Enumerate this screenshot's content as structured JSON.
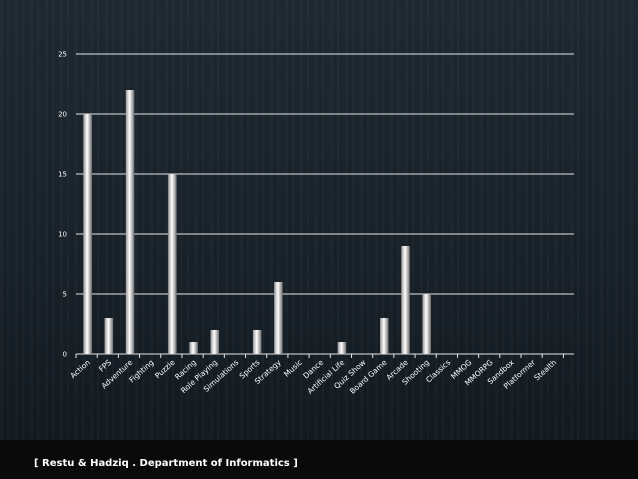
{
  "chart_data": {
    "type": "bar",
    "title": "",
    "xlabel": "",
    "ylabel": "",
    "ylim": [
      0,
      25
    ],
    "yticks": [
      0,
      5,
      10,
      15,
      20,
      25
    ],
    "grid": true,
    "categories": [
      "Action",
      "FPS",
      "Adventure",
      "Fighting",
      "Puzzle",
      "Racing",
      "Role Playing",
      "Simulations",
      "Sports",
      "Strategy",
      "Music",
      "Dance",
      "Artificial Life",
      "Quiz Show",
      "Board Game",
      "Arcade",
      "Shooting",
      "Classics",
      "MMOG",
      "MMORPG",
      "Sandbox",
      "Platformer",
      "Stealth"
    ],
    "values": [
      20,
      3,
      22,
      0,
      15,
      1,
      2,
      0,
      2,
      6,
      0,
      0,
      1,
      0,
      3,
      9,
      5,
      0,
      0,
      0,
      0,
      0,
      0
    ]
  },
  "footer": {
    "text": "[ Restu & Hadziq . Department of Informatics ]"
  },
  "colors": {
    "grid": "#e0e0e0",
    "bar_light": "#ffffff",
    "bar_dark": "#8a8a8a",
    "text": "#ffffff"
  }
}
